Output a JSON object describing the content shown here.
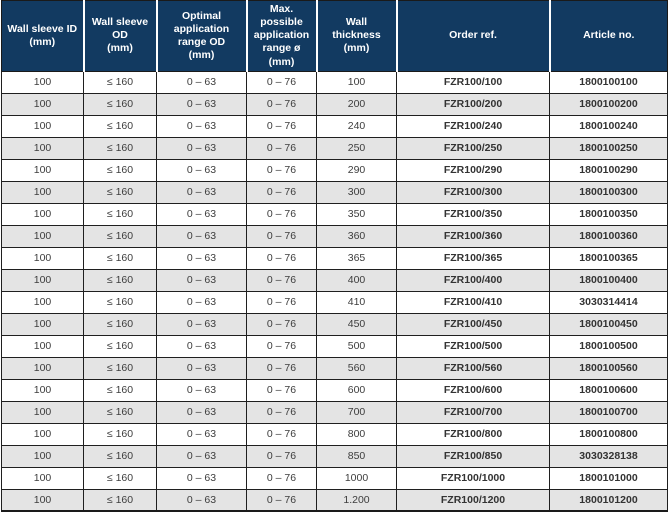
{
  "table": {
    "columns": [
      "Wall sleeve ID\n(mm)",
      "Wall sleeve OD\n(mm)",
      "Optimal\napplication\nrange OD\n(mm)",
      "Max. possible\napplication\nrange ø (mm)",
      "Wall thickness\n(mm)",
      "Order ref.",
      "Article no."
    ],
    "rows": [
      [
        "100",
        "≤ 160",
        "0 – 63",
        "0 – 76",
        "100",
        "FZR100/100",
        "1800100100"
      ],
      [
        "100",
        "≤ 160",
        "0 – 63",
        "0 – 76",
        "200",
        "FZR100/200",
        "1800100200"
      ],
      [
        "100",
        "≤ 160",
        "0 – 63",
        "0 – 76",
        "240",
        "FZR100/240",
        "1800100240"
      ],
      [
        "100",
        "≤ 160",
        "0 – 63",
        "0 – 76",
        "250",
        "FZR100/250",
        "1800100250"
      ],
      [
        "100",
        "≤ 160",
        "0 – 63",
        "0 – 76",
        "290",
        "FZR100/290",
        "1800100290"
      ],
      [
        "100",
        "≤ 160",
        "0 – 63",
        "0 – 76",
        "300",
        "FZR100/300",
        "1800100300"
      ],
      [
        "100",
        "≤ 160",
        "0 – 63",
        "0 – 76",
        "350",
        "FZR100/350",
        "1800100350"
      ],
      [
        "100",
        "≤ 160",
        "0 – 63",
        "0 – 76",
        "360",
        "FZR100/360",
        "1800100360"
      ],
      [
        "100",
        "≤ 160",
        "0 – 63",
        "0 – 76",
        "365",
        "FZR100/365",
        "1800100365"
      ],
      [
        "100",
        "≤ 160",
        "0 – 63",
        "0 – 76",
        "400",
        "FZR100/400",
        "1800100400"
      ],
      [
        "100",
        "≤ 160",
        "0 – 63",
        "0 – 76",
        "410",
        "FZR100/410",
        "3030314414"
      ],
      [
        "100",
        "≤ 160",
        "0 – 63",
        "0 – 76",
        "450",
        "FZR100/450",
        "1800100450"
      ],
      [
        "100",
        "≤ 160",
        "0 – 63",
        "0 – 76",
        "500",
        "FZR100/500",
        "1800100500"
      ],
      [
        "100",
        "≤ 160",
        "0 – 63",
        "0 – 76",
        "560",
        "FZR100/560",
        "1800100560"
      ],
      [
        "100",
        "≤ 160",
        "0 – 63",
        "0 – 76",
        "600",
        "FZR100/600",
        "1800100600"
      ],
      [
        "100",
        "≤ 160",
        "0 – 63",
        "0 – 76",
        "700",
        "FZR100/700",
        "1800100700"
      ],
      [
        "100",
        "≤ 160",
        "0 – 63",
        "0 – 76",
        "800",
        "FZR100/800",
        "1800100800"
      ],
      [
        "100",
        "≤ 160",
        "0 – 63",
        "0 – 76",
        "850",
        "FZR100/850",
        "3030328138"
      ],
      [
        "100",
        "≤ 160",
        "0 – 63",
        "0 – 76",
        "1000",
        "FZR100/1000",
        "1800101000"
      ],
      [
        "100",
        "≤ 160",
        "0 – 63",
        "0 – 76",
        "1.200",
        "FZR100/1200",
        "1800101200"
      ]
    ],
    "bold_columns": [
      5,
      6
    ]
  },
  "colors": {
    "header_background": "#123a61",
    "header_text": "#ffffff",
    "row_stripe": "#e4e4e4",
    "body_text": "#3d3d3d",
    "border": "#1f1f1f"
  }
}
